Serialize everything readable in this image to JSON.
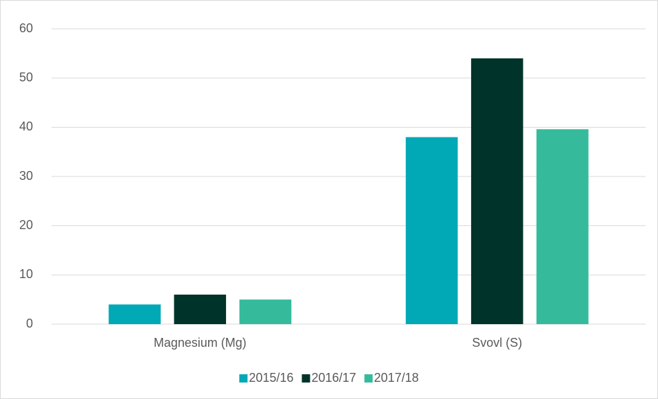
{
  "chart_data": {
    "type": "bar",
    "categories": [
      "Magnesium (Mg)",
      "Svovl (S)"
    ],
    "series": [
      {
        "name": "2015/16",
        "color": "#00a9b5",
        "values": [
          4,
          38
        ]
      },
      {
        "name": "2016/17",
        "color": "#003329",
        "values": [
          6,
          54
        ]
      },
      {
        "name": "2017/18",
        "color": "#35bb9c",
        "values": [
          5,
          39.6
        ]
      }
    ],
    "ylim": [
      0,
      60
    ],
    "yticks": [
      0,
      10,
      20,
      30,
      40,
      50,
      60
    ],
    "grid": true,
    "legend": "bottom"
  }
}
